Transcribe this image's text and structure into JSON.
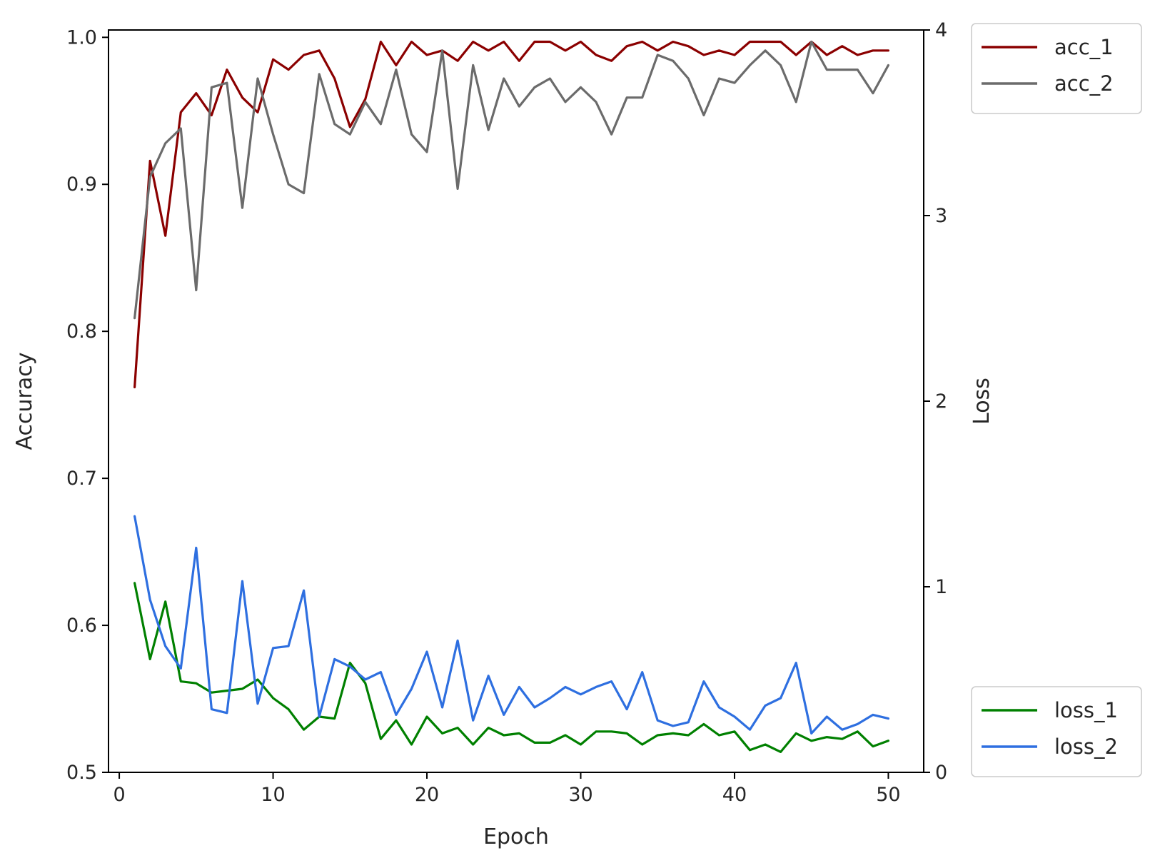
{
  "chart_data": {
    "type": "line",
    "xlabel": "Epoch",
    "ylabel_left": "Accuracy",
    "ylabel_right": "Loss",
    "xlim": [
      -0.7,
      52.3
    ],
    "xticks": [
      0,
      10,
      20,
      30,
      40,
      50
    ],
    "ylim_left": [
      0.5,
      1.005
    ],
    "yticks_left": [
      0.5,
      0.6,
      0.7,
      0.8,
      0.9,
      1.0
    ],
    "ytick_labels_left": [
      "0.5",
      "0.6",
      "0.7",
      "0.8",
      "0.9",
      "1.0"
    ],
    "ylim_right": [
      0,
      4
    ],
    "yticks_right": [
      0,
      1,
      2,
      3,
      4
    ],
    "ytick_labels_right": [
      "0",
      "1",
      "2",
      "3",
      "4"
    ],
    "grid": false,
    "x": [
      1,
      2,
      3,
      4,
      5,
      6,
      7,
      8,
      9,
      10,
      11,
      12,
      13,
      14,
      15,
      16,
      17,
      18,
      19,
      20,
      21,
      22,
      23,
      24,
      25,
      26,
      27,
      28,
      29,
      30,
      31,
      32,
      33,
      34,
      35,
      36,
      37,
      38,
      39,
      40,
      41,
      42,
      43,
      44,
      45,
      46,
      47,
      48,
      49,
      50
    ],
    "series": [
      {
        "name": "acc_1",
        "axis": "left",
        "color": "#8b0000",
        "values": [
          0.762,
          0.916,
          0.865,
          0.949,
          0.962,
          0.947,
          0.978,
          0.959,
          0.949,
          0.985,
          0.978,
          0.988,
          0.991,
          0.972,
          0.939,
          0.958,
          0.997,
          0.981,
          0.997,
          0.988,
          0.991,
          0.984,
          0.997,
          0.991,
          0.997,
          0.984,
          0.997,
          0.997,
          0.991,
          0.997,
          0.988,
          0.984,
          0.994,
          0.997,
          0.991,
          0.997,
          0.994,
          0.988,
          0.991,
          0.988,
          0.997,
          0.997,
          0.997,
          0.988,
          0.997,
          0.988,
          0.994,
          0.988,
          0.991,
          0.991
        ]
      },
      {
        "name": "acc_2",
        "axis": "left",
        "color": "#6b6b6b",
        "values": [
          0.809,
          0.905,
          0.928,
          0.938,
          0.828,
          0.966,
          0.969,
          0.884,
          0.972,
          0.934,
          0.9,
          0.894,
          0.975,
          0.941,
          0.934,
          0.956,
          0.941,
          0.978,
          0.934,
          0.922,
          0.991,
          0.897,
          0.981,
          0.937,
          0.972,
          0.953,
          0.966,
          0.972,
          0.956,
          0.966,
          0.956,
          0.934,
          0.959,
          0.959,
          0.988,
          0.984,
          0.972,
          0.947,
          0.972,
          0.969,
          0.981,
          0.991,
          0.981,
          0.956,
          0.997,
          0.978,
          0.978,
          0.978,
          0.962,
          0.981
        ]
      },
      {
        "name": "loss_1",
        "axis": "right",
        "color": "#008000",
        "values": [
          1.02,
          0.61,
          0.92,
          0.49,
          0.48,
          0.43,
          0.44,
          0.45,
          0.5,
          0.4,
          0.34,
          0.23,
          0.3,
          0.29,
          0.59,
          0.48,
          0.18,
          0.28,
          0.15,
          0.3,
          0.21,
          0.24,
          0.15,
          0.24,
          0.2,
          0.21,
          0.16,
          0.16,
          0.2,
          0.15,
          0.22,
          0.22,
          0.21,
          0.15,
          0.2,
          0.21,
          0.2,
          0.26,
          0.2,
          0.22,
          0.12,
          0.15,
          0.11,
          0.21,
          0.17,
          0.19,
          0.18,
          0.22,
          0.14,
          0.17
        ]
      },
      {
        "name": "loss_2",
        "axis": "right",
        "color": "#2e6fe0",
        "values": [
          1.38,
          0.93,
          0.68,
          0.56,
          1.21,
          0.34,
          0.32,
          1.03,
          0.37,
          0.67,
          0.68,
          0.98,
          0.3,
          0.61,
          0.57,
          0.5,
          0.54,
          0.31,
          0.45,
          0.65,
          0.35,
          0.71,
          0.28,
          0.52,
          0.31,
          0.46,
          0.35,
          0.4,
          0.46,
          0.42,
          0.46,
          0.49,
          0.34,
          0.54,
          0.28,
          0.25,
          0.27,
          0.49,
          0.35,
          0.3,
          0.23,
          0.36,
          0.4,
          0.59,
          0.21,
          0.3,
          0.23,
          0.26,
          0.31,
          0.29
        ]
      }
    ],
    "legends": [
      {
        "placement": "top-right",
        "entries": [
          "acc_1",
          "acc_2"
        ]
      },
      {
        "placement": "bottom-right",
        "entries": [
          "loss_1",
          "loss_2"
        ]
      }
    ]
  }
}
